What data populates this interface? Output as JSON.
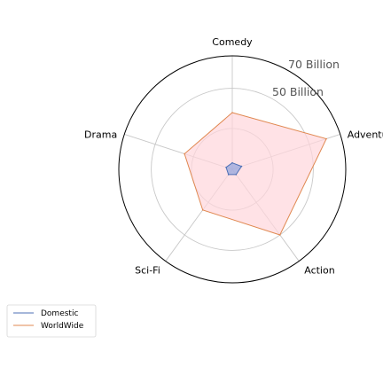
{
  "chart_data": {
    "type": "radar",
    "categories": [
      "Comedy",
      "Adventure",
      "Action",
      "Sci-Fi",
      "Drama"
    ],
    "radial_ticks": [
      {
        "value": 50,
        "label": "50 Billion"
      },
      {
        "value": 70,
        "label": "70 Billion"
      }
    ],
    "rlim": [
      0,
      70
    ],
    "grid": true,
    "legend_placement": "bottom-left",
    "series": [
      {
        "name": "Domestic",
        "values": [
          4,
          6,
          4,
          4,
          4
        ],
        "color": "#4c6fb5",
        "fill": "#8fa4dd"
      },
      {
        "name": "WorldWide",
        "values": [
          35,
          61,
          50,
          31,
          31
        ],
        "color": "#e08850",
        "fill": "#ffd6dc"
      }
    ]
  }
}
